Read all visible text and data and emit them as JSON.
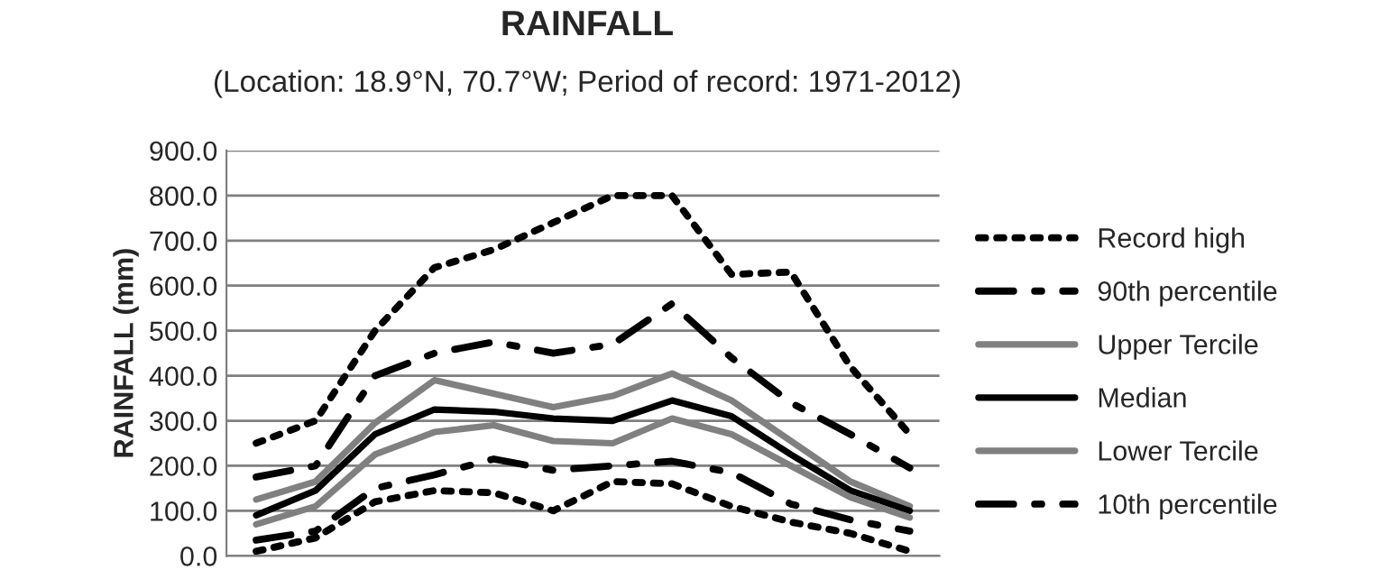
{
  "chart_data": {
    "type": "line",
    "title": "RAINFALL",
    "subtitle": "(Location: 18.9°N, 70.7°W; Period of record: 1971-2012)",
    "ylabel": "RAINFALL (mm)",
    "categories": [
      null,
      null,
      null,
      null,
      null,
      null,
      null,
      null,
      null,
      null,
      null,
      null
    ],
    "series": [
      {
        "name": "Record high",
        "color": "#000000",
        "line_style": "dotted",
        "values": [
          250,
          300,
          500,
          640,
          680,
          740,
          800,
          800,
          625,
          630,
          420,
          270
        ]
      },
      {
        "name": "90th percentile",
        "color": "#000000",
        "line_style": "dashdot",
        "values": [
          175,
          200,
          400,
          450,
          475,
          450,
          470,
          560,
          440,
          340,
          270,
          195
        ]
      },
      {
        "name": "Upper Tercile",
        "color": "#808080",
        "line_style": "solid",
        "values": [
          125,
          165,
          295,
          390,
          360,
          330,
          355,
          405,
          345,
          255,
          165,
          110
        ]
      },
      {
        "name": "Median",
        "color": "#000000",
        "line_style": "solid",
        "values": [
          90,
          145,
          270,
          325,
          320,
          305,
          300,
          345,
          310,
          225,
          145,
          100
        ]
      },
      {
        "name": "Lower Tercile",
        "color": "#808080",
        "line_style": "solid",
        "values": [
          70,
          110,
          225,
          275,
          290,
          255,
          250,
          305,
          270,
          200,
          130,
          85
        ]
      },
      {
        "name": "10th percentile",
        "color": "#000000",
        "line_style": "dashdot",
        "values": [
          35,
          55,
          150,
          180,
          215,
          190,
          200,
          210,
          185,
          115,
          80,
          55
        ]
      },
      {
        "color": "#000000",
        "line_style": "dotted",
        "values": [
          10,
          40,
          120,
          145,
          140,
          100,
          165,
          160,
          110,
          75,
          50,
          10
        ]
      }
    ],
    "ylim": [
      0,
      900
    ],
    "yticks": [
      {
        "value": 0,
        "label": "0.0"
      },
      {
        "value": 100,
        "label": "100.0"
      },
      {
        "value": 200,
        "label": "200.0"
      },
      {
        "value": 300,
        "label": "300.0"
      },
      {
        "value": 400,
        "label": "400.0"
      },
      {
        "value": 500,
        "label": "500.0"
      },
      {
        "value": 600,
        "label": "600.0"
      },
      {
        "value": 700,
        "label": "700.0"
      },
      {
        "value": 800,
        "label": "800.0"
      },
      {
        "value": 900,
        "label": "900.0"
      }
    ],
    "grid": "y",
    "legend": "right",
    "tick_labels": "y"
  }
}
